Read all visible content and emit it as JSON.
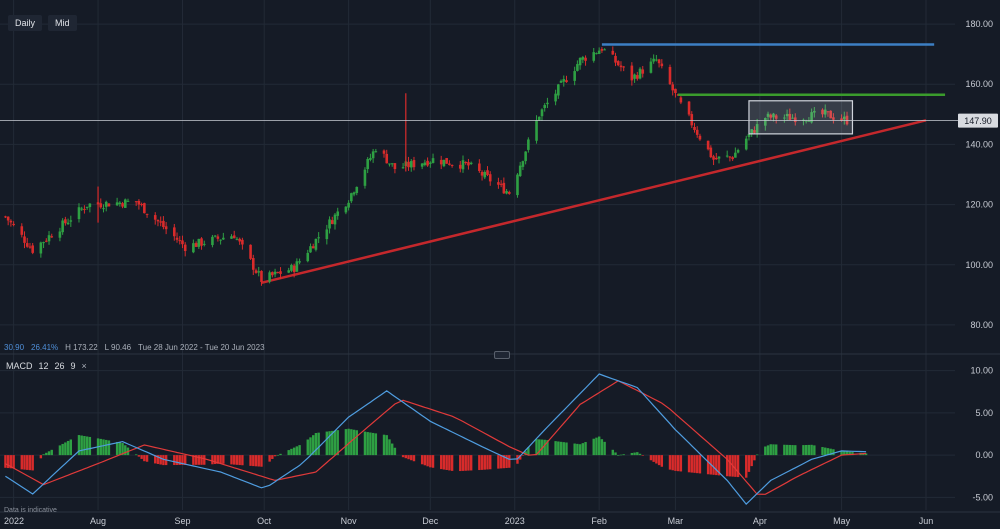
{
  "toolbar": {
    "interval_label": "Daily",
    "price_type_label": "Mid"
  },
  "stats": {
    "change": "30.90",
    "change_pct": "26.41%",
    "high": "H 173.22",
    "low": "L 90.46",
    "range": "Tue 28 Jun 2022 - Tue 20 Jun 2023"
  },
  "macd": {
    "label": "MACD",
    "fast": "12",
    "slow": "26",
    "signal": "9",
    "close_label": "×"
  },
  "disclaimer": "Data is indicative",
  "colors": {
    "background": "#151b26",
    "grid": "#222a36",
    "up": "#2ea043",
    "down": "#d92b2b",
    "resistance_blue": "#3d7fc4",
    "resistance_green": "#3a9c2c",
    "trendline": "#c4282c",
    "macd_line": "#4f9de0",
    "signal_line": "#e03a3a",
    "price_label_bg": "#d8dbe0"
  },
  "chart_data": [
    {
      "type": "candlestick",
      "x_ticks": [
        "2022",
        "Aug",
        "Sep",
        "Oct",
        "Nov",
        "Dec",
        "2023",
        "Feb",
        "Mar",
        "Apr",
        "May",
        "Jun"
      ],
      "y_ticks": [
        "180.00",
        "160.00",
        "140.00",
        "120.00",
        "100.00",
        "80.00"
      ],
      "ylim": [
        71,
        188
      ],
      "current_price": "147.90",
      "key_points": [
        {
          "date": "2022-06-28",
          "close": 116
        },
        {
          "date": "2022-07-08",
          "close": 105
        },
        {
          "date": "2022-07-28",
          "close": 120
        },
        {
          "date": "2022-08-15",
          "close": 121
        },
        {
          "date": "2022-09-02",
          "close": 106
        },
        {
          "date": "2022-09-20",
          "close": 110
        },
        {
          "date": "2022-09-30",
          "close": 95
        },
        {
          "date": "2022-10-12",
          "close": 99
        },
        {
          "date": "2022-11-01",
          "close": 122
        },
        {
          "date": "2022-11-11",
          "close": 139
        },
        {
          "date": "2022-11-18",
          "close": 132
        },
        {
          "date": "2022-12-02",
          "close": 135
        },
        {
          "date": "2022-12-15",
          "close": 133
        },
        {
          "date": "2022-12-30",
          "close": 124
        },
        {
          "date": "2023-01-10",
          "close": 150
        },
        {
          "date": "2023-01-25",
          "close": 168
        },
        {
          "date": "2023-02-02",
          "close": 172
        },
        {
          "date": "2023-02-13",
          "close": 162
        },
        {
          "date": "2023-02-22",
          "close": 168
        },
        {
          "date": "2023-03-03",
          "close": 153
        },
        {
          "date": "2023-03-15",
          "close": 135
        },
        {
          "date": "2023-03-22",
          "close": 136
        },
        {
          "date": "2023-03-27",
          "close": 142
        },
        {
          "date": "2023-04-03",
          "close": 149
        },
        {
          "date": "2023-04-15",
          "close": 149
        },
        {
          "date": "2023-04-25",
          "close": 150
        },
        {
          "date": "2023-05-03",
          "close": 148
        }
      ],
      "spikes": [
        {
          "date": "2022-11-22",
          "high": 157,
          "low": 131
        },
        {
          "date": "2022-08-01",
          "high": 126,
          "low": 114
        }
      ],
      "annotations": {
        "resistance_blue": {
          "from": "2023-02-02",
          "to": "2023-06-04",
          "price": 173.2
        },
        "resistance_green": {
          "from": "2023-03-02",
          "to": "2023-06-08",
          "price": 156.5
        },
        "trendline": {
          "from": {
            "date": "2022-09-30",
            "price": 94
          },
          "to": {
            "date": "2023-06-01",
            "price": 148
          }
        },
        "consolidation_box": {
          "from": "2023-03-28",
          "to": "2023-05-05",
          "low": 143.5,
          "high": 154.5
        }
      }
    },
    {
      "type": "macd",
      "y_ticks": [
        "10.00",
        "5.00",
        "0.00",
        "-5.00"
      ],
      "ylim": [
        -6.5,
        11.5
      ],
      "macd_points": [
        {
          "date": "2022-06-28",
          "v": -2.5
        },
        {
          "date": "2022-07-08",
          "v": -4.6
        },
        {
          "date": "2022-07-25",
          "v": 0.5
        },
        {
          "date": "2022-08-10",
          "v": 1.6
        },
        {
          "date": "2022-08-25",
          "v": -0.5
        },
        {
          "date": "2022-09-15",
          "v": -2.0
        },
        {
          "date": "2022-10-01",
          "v": -4.0
        },
        {
          "date": "2022-10-15",
          "v": -1.0
        },
        {
          "date": "2022-11-01",
          "v": 4.5
        },
        {
          "date": "2022-11-15",
          "v": 7.6
        },
        {
          "date": "2022-12-01",
          "v": 4.0
        },
        {
          "date": "2022-12-20",
          "v": 1.0
        },
        {
          "date": "2023-01-01",
          "v": -0.8
        },
        {
          "date": "2023-01-12",
          "v": 3.0
        },
        {
          "date": "2023-02-01",
          "v": 9.6
        },
        {
          "date": "2023-02-15",
          "v": 8.0
        },
        {
          "date": "2023-03-01",
          "v": 3.0
        },
        {
          "date": "2023-03-20",
          "v": -3.0
        },
        {
          "date": "2023-03-27",
          "v": -5.8
        },
        {
          "date": "2023-04-05",
          "v": -3.0
        },
        {
          "date": "2023-04-20",
          "v": -0.5
        },
        {
          "date": "2023-05-01",
          "v": 0.5
        },
        {
          "date": "2023-05-10",
          "v": 0.4
        }
      ],
      "signal_points": [
        {
          "date": "2022-06-28",
          "v": -1.0
        },
        {
          "date": "2022-07-12",
          "v": -3.5
        },
        {
          "date": "2022-08-01",
          "v": -1.0
        },
        {
          "date": "2022-08-18",
          "v": 1.2
        },
        {
          "date": "2022-09-10",
          "v": -0.5
        },
        {
          "date": "2022-10-05",
          "v": -3.0
        },
        {
          "date": "2022-10-20",
          "v": -2.0
        },
        {
          "date": "2022-11-05",
          "v": 2.5
        },
        {
          "date": "2022-11-20",
          "v": 6.6
        },
        {
          "date": "2022-12-10",
          "v": 4.5
        },
        {
          "date": "2022-12-30",
          "v": 1.0
        },
        {
          "date": "2023-01-08",
          "v": -0.3
        },
        {
          "date": "2023-01-25",
          "v": 6.0
        },
        {
          "date": "2023-02-08",
          "v": 8.8
        },
        {
          "date": "2023-02-25",
          "v": 6.0
        },
        {
          "date": "2023-03-20",
          "v": -0.5
        },
        {
          "date": "2023-04-01",
          "v": -5.0
        },
        {
          "date": "2023-04-15",
          "v": -2.5
        },
        {
          "date": "2023-05-01",
          "v": 0.0
        },
        {
          "date": "2023-05-10",
          "v": 0.2
        }
      ]
    }
  ]
}
